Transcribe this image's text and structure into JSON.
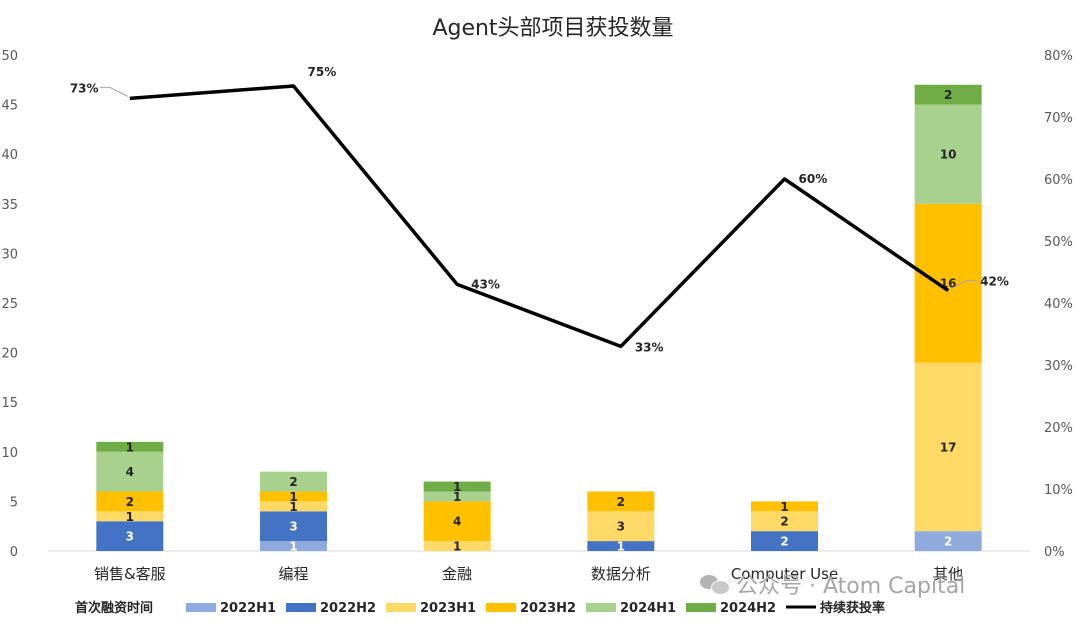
{
  "chart_data": {
    "type": "bar",
    "title": "Agent头部项目获投数量",
    "categories": [
      "销售&客服",
      "编程",
      "金融",
      "数据分析",
      "Computer Use",
      "其他"
    ],
    "series": [
      {
        "name": "2022H1",
        "color": "#8faadc",
        "values": [
          0,
          1,
          0,
          0,
          0,
          2
        ]
      },
      {
        "name": "2022H2",
        "color": "#4472c4",
        "values": [
          3,
          3,
          0,
          1,
          2,
          0
        ]
      },
      {
        "name": "2023H1",
        "color": "#ffd966",
        "values": [
          1,
          1,
          1,
          3,
          2,
          17
        ]
      },
      {
        "name": "2023H2",
        "color": "#ffc000",
        "values": [
          2,
          1,
          4,
          2,
          1,
          16
        ]
      },
      {
        "name": "2024H1",
        "color": "#a9d18e",
        "values": [
          4,
          2,
          1,
          0,
          0,
          10
        ]
      },
      {
        "name": "2024H2",
        "color": "#70ad47",
        "values": [
          1,
          0,
          1,
          0,
          0,
          2
        ]
      }
    ],
    "line_series": {
      "name": "持续获投率",
      "color": "#000000",
      "values": [
        73,
        75,
        43,
        33,
        60,
        42
      ],
      "labels": [
        "73%",
        "75%",
        "43%",
        "33%",
        "60%",
        "42%"
      ]
    },
    "ylim": [
      0,
      50
    ],
    "y_ticks": [
      "0",
      "5",
      "10",
      "15",
      "20",
      "25",
      "30",
      "35",
      "40",
      "45",
      "50"
    ],
    "y2lim": [
      0,
      80
    ],
    "y2_ticks": [
      "0%",
      "10%",
      "20%",
      "30%",
      "40%",
      "50%",
      "60%",
      "70%",
      "80%"
    ],
    "legend_title": "首次融资时间",
    "legend_position": "bottom",
    "grid": false
  },
  "watermark": "公众号 · Atom Capital"
}
